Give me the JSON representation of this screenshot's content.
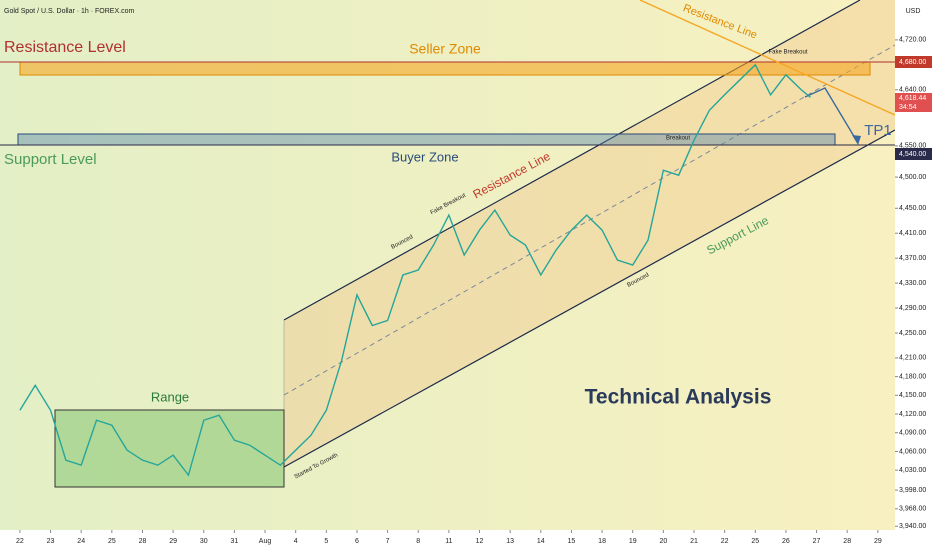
{
  "chart_data": {
    "type": "line",
    "title": "Gold Spot / U.S. Dollar · 1h · FOREX.com",
    "currency": "USD",
    "x": [
      0,
      0.5,
      1,
      1.5,
      2,
      2.5,
      3,
      3.5,
      4,
      4.5,
      5,
      5.5,
      6,
      6.5,
      7,
      7.5,
      8,
      8.5,
      9,
      9.5,
      10,
      10.5,
      11,
      11.5,
      12,
      12.5,
      13,
      13.5,
      14,
      14.5,
      15,
      15.5,
      16,
      16.5,
      17,
      17.5,
      18,
      18.5,
      19,
      19.5,
      20,
      20.5,
      21,
      21.5,
      22,
      22.5,
      23,
      23.5,
      24,
      24.5,
      25,
      25.5,
      25.8
    ],
    "series": [
      {
        "name": "Gold Spot",
        "color": "#26a69a",
        "values": [
          4126,
          4166,
          4126,
          4046,
          4038,
          4110,
          4102,
          4062,
          4046,
          4038,
          4054,
          4022,
          4110,
          4118,
          4078,
          4070,
          4054,
          4038,
          4062,
          4086,
          4126,
          4206,
          4311,
          4262,
          4270,
          4343,
          4351,
          4391,
          4439,
          4375,
          4415,
          4447,
          4407,
          4391,
          4343,
          4383,
          4415,
          4439,
          4415,
          4367,
          4359,
          4399,
          4511,
          4503,
          4559,
          4607,
          4632,
          4656,
          4680,
          4632,
          4664,
          4640,
          4628
        ]
      }
    ],
    "xlim": [
      -0.65,
      28.56
    ],
    "xticks": [
      {
        "value": 0,
        "label": "22"
      },
      {
        "value": 1,
        "label": "23"
      },
      {
        "value": 2,
        "label": "24"
      },
      {
        "value": 3,
        "label": "25"
      },
      {
        "value": 4,
        "label": "28"
      },
      {
        "value": 5,
        "label": "29"
      },
      {
        "value": 6,
        "label": "30"
      },
      {
        "value": 7,
        "label": "31"
      },
      {
        "value": 8,
        "label": "Aug"
      },
      {
        "value": 9,
        "label": "4"
      },
      {
        "value": 10,
        "label": "5"
      },
      {
        "value": 11,
        "label": "6"
      },
      {
        "value": 12,
        "label": "7"
      },
      {
        "value": 13,
        "label": "8"
      },
      {
        "value": 14,
        "label": "11"
      },
      {
        "value": 15,
        "label": "12"
      },
      {
        "value": 16,
        "label": "13"
      },
      {
        "value": 17,
        "label": "14"
      },
      {
        "value": 18,
        "label": "15"
      },
      {
        "value": 19,
        "label": "18"
      },
      {
        "value": 20,
        "label": "19"
      },
      {
        "value": 21,
        "label": "20"
      },
      {
        "value": 22,
        "label": "21"
      },
      {
        "value": 23,
        "label": "22"
      },
      {
        "value": 24,
        "label": "25"
      },
      {
        "value": 25,
        "label": "26"
      },
      {
        "value": 26,
        "label": "27"
      },
      {
        "value": 27,
        "label": "28"
      },
      {
        "value": 28,
        "label": "29"
      }
    ],
    "ylim": [
      3934,
      4784
    ],
    "yticks": [
      {
        "value": 4720,
        "label": "4,720.00"
      },
      {
        "value": 4640,
        "label": "4,640.00"
      },
      {
        "value": 4550,
        "label": "4,550.00"
      },
      {
        "value": 4500,
        "label": "4,500.00"
      },
      {
        "value": 4450,
        "label": "4,450.00"
      },
      {
        "value": 4410,
        "label": "4,410.00"
      },
      {
        "value": 4370,
        "label": "4,370.00"
      },
      {
        "value": 4330,
        "label": "4,330.00"
      },
      {
        "value": 4290,
        "label": "4,290.00"
      },
      {
        "value": 4250,
        "label": "4,250.00"
      },
      {
        "value": 4210,
        "label": "4,210.00"
      },
      {
        "value": 4180,
        "label": "4,180.00"
      },
      {
        "value": 4150,
        "label": "4,150.00"
      },
      {
        "value": 4120,
        "label": "4,120.00"
      },
      {
        "value": 4090,
        "label": "4,090.00"
      },
      {
        "value": 4060,
        "label": "4,060.00"
      },
      {
        "value": 4030,
        "label": "4,030.00"
      },
      {
        "value": 3998,
        "label": "3,998.00"
      },
      {
        "value": 3968,
        "label": "3,968.00"
      },
      {
        "value": 3940,
        "label": "3,940.00"
      }
    ],
    "price_labels": [
      "4,680.00",
      "4,618.44",
      "34:54",
      "4,540.00"
    ],
    "annotations": [
      "Resistance Level",
      "Seller Zone",
      "Support Level",
      "Buyer Zone",
      "Resistance Line",
      "Resistance Line",
      "Fake Breakout",
      "Fake Breakout",
      "Breakout",
      "Bounced",
      "Bounced",
      "Started To Growth",
      "Range",
      "Support Line",
      "TP1",
      "Technical Analysis"
    ]
  }
}
